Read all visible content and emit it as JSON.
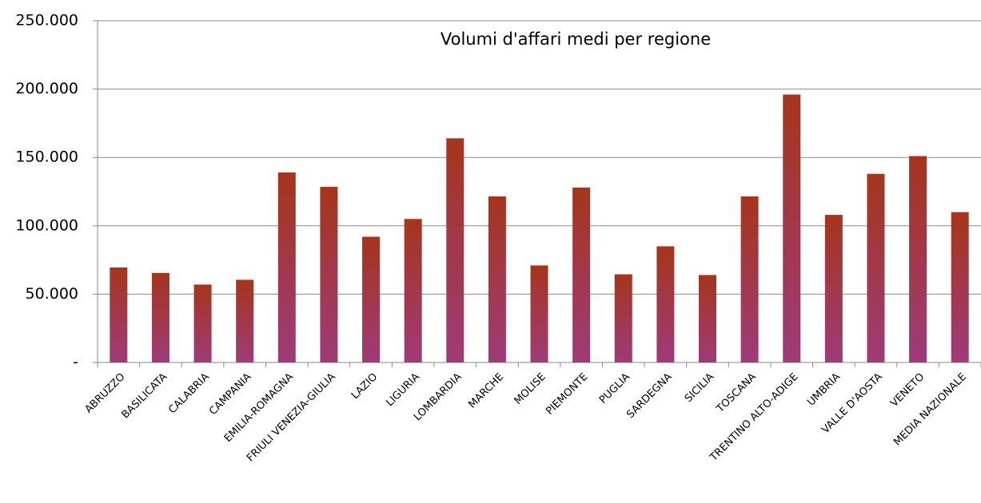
{
  "chart_data": {
    "type": "bar",
    "title": "Volumi d'affari medi per regione",
    "categories": [
      "ABRUZZO",
      "BASILICATA",
      "CALABRIA",
      "CAMPANIA",
      "EMILIA-ROMAGNA",
      "FRIULI VENEZIA-GIULIA",
      "LAZIO",
      "LIGURIA",
      "LOMBARDIA",
      "MARCHE",
      "MOLISE",
      "PIEMONTE",
      "PUGLIA",
      "SARDEGNA",
      "SICILIA",
      "TOSCANA",
      "TRENTINO ALTO-ADIGE",
      "UMBRIA",
      "VALLE D'AOSTA",
      "VENETO",
      "MEDIA NAZIONALE"
    ],
    "values": [
      69500,
      65500,
      57000,
      60500,
      139000,
      128500,
      92000,
      105000,
      164000,
      121500,
      71000,
      128000,
      64500,
      85000,
      64000,
      121500,
      196000,
      108000,
      138000,
      151000,
      110000
    ],
    "color": "#a6351c",
    "gradient_color": "#9e3b79",
    "ylim": [
      0,
      250000
    ],
    "yticks": [
      {
        "value": 0,
        "label": "-"
      },
      {
        "value": 50000,
        "label": "50.000"
      },
      {
        "value": 100000,
        "label": "100.000"
      },
      {
        "value": 150000,
        "label": "150.000"
      },
      {
        "value": 200000,
        "label": "200.000"
      },
      {
        "value": 250000,
        "label": "250.000"
      }
    ],
    "grid": true
  }
}
